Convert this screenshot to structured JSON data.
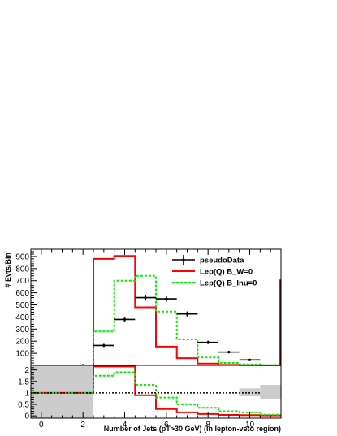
{
  "chart_data": [
    {
      "type": "line",
      "panel": "main",
      "ylabel": "# Evts/Bin",
      "xlabel": "",
      "xlim": [
        -0.5,
        11.5
      ],
      "ylim": [
        0,
        960
      ],
      "yticks": [
        100,
        200,
        300,
        400,
        500,
        600,
        700,
        800,
        900
      ],
      "legend": {
        "placement": "top-right",
        "entries": [
          "pseudoData",
          "Lep(Q) B_W=0",
          "Lep(Q) B_lnu=0"
        ]
      },
      "series": [
        {
          "name": "pseudoData",
          "style": "points-with-errors",
          "color": "#000000",
          "x": [
            2,
            3,
            4,
            5,
            6,
            7,
            8,
            9,
            10
          ],
          "y": [
            0,
            165,
            380,
            560,
            550,
            425,
            190,
            110,
            45
          ],
          "yerr": [
            0,
            13,
            19,
            24,
            23,
            21,
            14,
            10,
            7
          ]
        },
        {
          "name": "Lep(Q) B_W=0",
          "style": "step",
          "color": "#ff0000",
          "bin_edges": [
            -0.5,
            0.5,
            1.5,
            2.5,
            3.5,
            4.5,
            5.5,
            6.5,
            7.5,
            8.5,
            9.5,
            10.5,
            11.5
          ],
          "values": [
            0,
            0,
            0,
            880,
            905,
            480,
            155,
            60,
            15,
            4,
            2,
            1
          ]
        },
        {
          "name": "Lep(Q) B_lnu=0",
          "style": "step-dashed",
          "color": "#00ee00",
          "bin_edges": [
            -0.5,
            0.5,
            1.5,
            2.5,
            3.5,
            4.5,
            5.5,
            6.5,
            7.5,
            8.5,
            9.5,
            10.5,
            11.5
          ],
          "values": [
            0,
            0,
            0,
            280,
            700,
            740,
            445,
            215,
            65,
            20,
            8,
            2
          ]
        }
      ]
    },
    {
      "type": "line",
      "panel": "ratio",
      "xlabel": "Number of Jets (pT>30 GeV) (in lepton-veto region)",
      "ylabel": "",
      "xlim": [
        -0.5,
        11.5
      ],
      "ylim": [
        -0.1,
        2.2
      ],
      "yticks": [
        0,
        0.5,
        1,
        1.5,
        2
      ],
      "ytick_labels": [
        "0",
        "0.5",
        "1",
        "1.5",
        "2"
      ],
      "xticks": [
        0,
        2,
        4,
        6,
        8,
        10
      ],
      "xtick_labels": [
        "0",
        "2",
        "4",
        "6",
        "8",
        "10"
      ],
      "reference_line": 1,
      "uncertainty_band": {
        "color": "#cccccc",
        "bins": [
          {
            "lo": -0.5,
            "hi": 2.5,
            "ymin": -0.1,
            "ymax": 2.2
          },
          {
            "lo": 9.5,
            "hi": 10.5,
            "ymin": 0.85,
            "ymax": 1.2
          },
          {
            "lo": 10.5,
            "hi": 11.5,
            "ymin": 0.75,
            "ymax": 1.35
          }
        ]
      },
      "series": [
        {
          "name": "Lep(Q) B_W=0",
          "style": "step",
          "color": "#ff0000",
          "bin_edges": [
            -0.5,
            2.5,
            3.5,
            4.5,
            5.5,
            6.5,
            7.5,
            8.5,
            9.5,
            10.5,
            11.5
          ],
          "values": [
            1.0,
            2.15,
            2.15,
            0.9,
            0.3,
            0.15,
            0.08,
            0.04,
            0.03,
            0.02
          ]
        },
        {
          "name": "Lep(Q) B_lnu=0",
          "style": "step-dashed",
          "color": "#00ee00",
          "bin_edges": [
            -0.5,
            2.5,
            3.5,
            4.5,
            5.5,
            6.5,
            7.5,
            8.5,
            9.5,
            10.5,
            11.5
          ],
          "values": [
            1.0,
            1.75,
            1.9,
            1.35,
            0.8,
            0.5,
            0.35,
            0.2,
            0.15,
            0.05
          ]
        }
      ]
    }
  ]
}
